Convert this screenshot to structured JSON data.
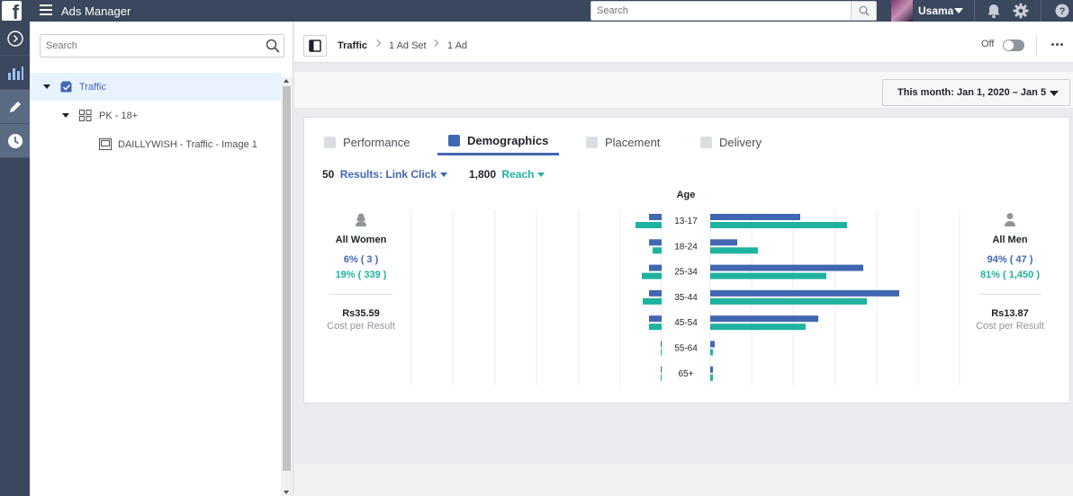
{
  "app": {
    "title": "Ads Manager"
  },
  "topbar": {
    "search_placeholder": "Search",
    "username": "Usama"
  },
  "leftnav": {
    "items": [
      {
        "icon": "chevron-right-circle-icon"
      },
      {
        "icon": "bar-chart-icon"
      },
      {
        "icon": "pencil-icon"
      },
      {
        "icon": "clock-icon"
      }
    ]
  },
  "tree": {
    "search_placeholder": "Search",
    "campaign": "Traffic",
    "ad_set": "PK - 18+",
    "ad": "DAILLYWISH - Traffic - Image 1"
  },
  "breadcrumb": {
    "campaign": "Traffic",
    "ad_set": "1 Ad Set",
    "ad": "1 Ad"
  },
  "status": {
    "toggle_label": "Off"
  },
  "date_range": "This month: Jan 1, 2020 – Jan 5",
  "tabs": [
    {
      "label": "Performance",
      "active": false
    },
    {
      "label": "Demographics",
      "active": true
    },
    {
      "label": "Placement",
      "active": false
    },
    {
      "label": "Delivery",
      "active": false
    }
  ],
  "metrics": {
    "results_value": "50",
    "results_label": "Results: Link Click",
    "reach_value": "1,800",
    "reach_label": "Reach"
  },
  "women": {
    "label": "All Women",
    "results_pct": "6% ( 3 )",
    "reach_pct": "19% ( 339 )",
    "cost": "Rs35.59",
    "cost_label": "Cost per Result"
  },
  "men": {
    "label": "All Men",
    "results_pct": "94% ( 47 )",
    "reach_pct": "81% ( 1,450 )",
    "cost": "Rs13.87",
    "cost_label": "Cost per Result"
  },
  "colors": {
    "results": "#4267b2",
    "reach": "#20b2a0"
  },
  "chart_data": {
    "type": "bar",
    "title": "Age",
    "categories": [
      "13-17",
      "18-24",
      "25-34",
      "35-44",
      "45-54",
      "55-64",
      "65+"
    ],
    "series": [
      {
        "name": "Women Results",
        "values": [
          0.4,
          0.4,
          0.4,
          0.4,
          0.4,
          0,
          0
        ]
      },
      {
        "name": "Women Reach",
        "values": [
          29,
          10,
          22,
          21,
          14,
          1,
          0.5
        ]
      },
      {
        "name": "Men Results",
        "values": [
          10,
          3,
          17,
          21,
          12,
          0.5,
          0.3
        ]
      },
      {
        "name": "Men Reach",
        "values": [
          152,
          53,
          129,
          174,
          106,
          3,
          3
        ]
      }
    ],
    "note_scale": "Women bars extend left; Men bars extend right"
  }
}
